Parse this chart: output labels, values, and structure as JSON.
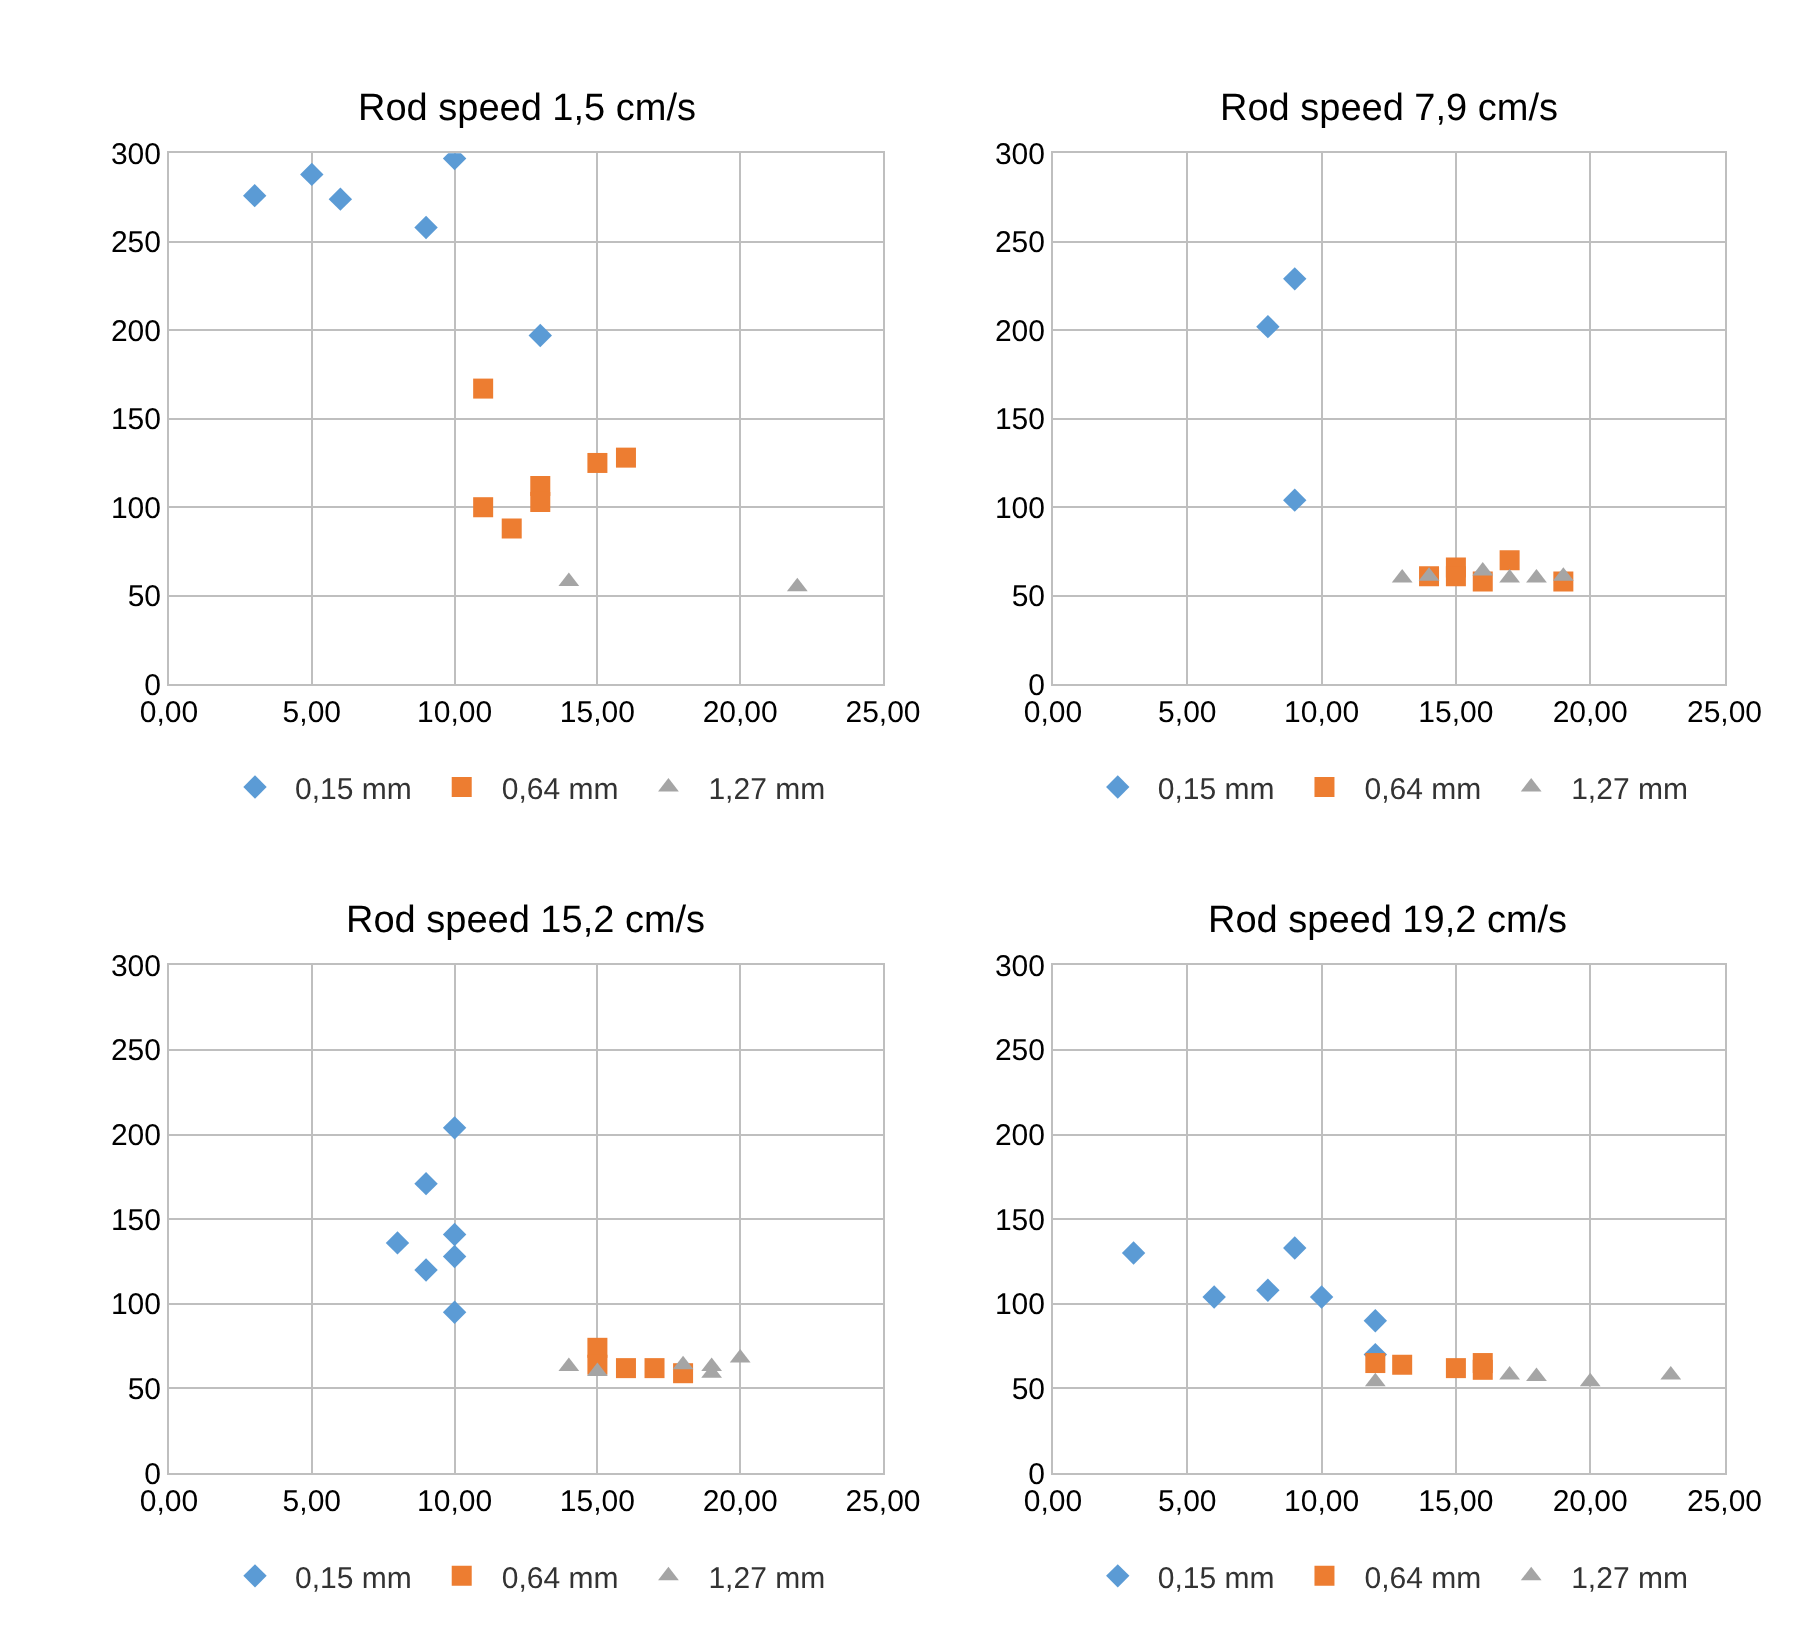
{
  "chart_data": [
    {
      "type": "scatter",
      "title": "Rod speed 1,5 cm/s",
      "xlim": [
        0,
        25
      ],
      "ylim": [
        0,
        300
      ],
      "xticks": [
        {
          "value": 0,
          "label": "0,00"
        },
        {
          "value": 5,
          "label": "5,00"
        },
        {
          "value": 10,
          "label": "10,00"
        },
        {
          "value": 15,
          "label": "15,00"
        },
        {
          "value": 20,
          "label": "20,00"
        },
        {
          "value": 25,
          "label": "25,00"
        }
      ],
      "yticks": [
        0,
        50,
        100,
        150,
        200,
        250,
        300
      ],
      "grid": true,
      "legend": "bottom",
      "series": [
        {
          "name": "0,15 mm",
          "color": "#5b9bd5",
          "marker": "diamond",
          "x": [
            3,
            5,
            6,
            9,
            10,
            13
          ],
          "values": [
            276,
            288,
            274,
            258,
            297,
            197
          ]
        },
        {
          "name": "0,64 mm",
          "color": "#ed7d31",
          "marker": "square",
          "x": [
            11,
            11,
            12,
            13,
            13,
            15,
            16
          ],
          "values": [
            167,
            100,
            88,
            112,
            103,
            125,
            128
          ]
        },
        {
          "name": "1,27 mm",
          "color": "#a5a5a5",
          "marker": "triangle",
          "x": [
            14,
            22
          ],
          "values": [
            58,
            55
          ]
        }
      ]
    },
    {
      "type": "scatter",
      "title": "Rod speed 7,9 cm/s",
      "xlim": [
        0,
        25
      ],
      "ylim": [
        0,
        300
      ],
      "xticks": [
        {
          "value": 0,
          "label": "0,00"
        },
        {
          "value": 5,
          "label": "5,00"
        },
        {
          "value": 10,
          "label": "10,00"
        },
        {
          "value": 15,
          "label": "15,00"
        },
        {
          "value": 20,
          "label": "20,00"
        },
        {
          "value": 25,
          "label": "25,00"
        }
      ],
      "yticks": [
        0,
        50,
        100,
        150,
        200,
        250,
        300
      ],
      "grid": true,
      "legend": "bottom",
      "series": [
        {
          "name": "0,15 mm",
          "color": "#5b9bd5",
          "marker": "diamond",
          "x": [
            8,
            9,
            9
          ],
          "values": [
            202,
            229,
            104
          ]
        },
        {
          "name": "0,64 mm",
          "color": "#ed7d31",
          "marker": "square",
          "x": [
            14,
            15,
            15,
            16,
            17,
            19
          ],
          "values": [
            61,
            66,
            61,
            58,
            70,
            58
          ]
        },
        {
          "name": "1,27 mm",
          "color": "#a5a5a5",
          "marker": "triangle",
          "x": [
            13,
            14,
            16,
            17,
            18,
            19
          ],
          "values": [
            60,
            61,
            64,
            60,
            60,
            61
          ]
        }
      ]
    },
    {
      "type": "scatter",
      "title": "Rod speed 15,2 cm/s",
      "xlim": [
        0,
        25
      ],
      "ylim": [
        0,
        300
      ],
      "xticks": [
        {
          "value": 0,
          "label": "0,00"
        },
        {
          "value": 5,
          "label": "5,00"
        },
        {
          "value": 10,
          "label": "10,00"
        },
        {
          "value": 15,
          "label": "15,00"
        },
        {
          "value": 20,
          "label": "20,00"
        },
        {
          "value": 25,
          "label": "25,00"
        }
      ],
      "yticks": [
        0,
        50,
        100,
        150,
        200,
        250,
        300
      ],
      "grid": true,
      "legend": "bottom",
      "series": [
        {
          "name": "0,15 mm",
          "color": "#5b9bd5",
          "marker": "diamond",
          "x": [
            10,
            9,
            8,
            10,
            10,
            9,
            10
          ],
          "values": [
            204,
            171,
            136,
            141,
            128,
            120,
            95
          ]
        },
        {
          "name": "0,64 mm",
          "color": "#ed7d31",
          "marker": "square",
          "x": [
            15,
            15,
            16,
            17,
            18
          ],
          "values": [
            74,
            64,
            62,
            62,
            59
          ]
        },
        {
          "name": "1,27 mm",
          "color": "#a5a5a5",
          "marker": "triangle",
          "x": [
            14,
            15,
            18,
            19,
            19,
            20
          ],
          "values": [
            63,
            60,
            64,
            63,
            59,
            68
          ]
        }
      ]
    },
    {
      "type": "scatter",
      "title": "Rod speed 19,2 cm/s",
      "xlim": [
        0,
        25
      ],
      "ylim": [
        0,
        300
      ],
      "xticks": [
        {
          "value": 0,
          "label": "0,00"
        },
        {
          "value": 5,
          "label": "5,00"
        },
        {
          "value": 10,
          "label": "10,00"
        },
        {
          "value": 15,
          "label": "15,00"
        },
        {
          "value": 20,
          "label": "20,00"
        },
        {
          "value": 25,
          "label": "25,00"
        }
      ],
      "yticks": [
        0,
        50,
        100,
        150,
        200,
        250,
        300
      ],
      "grid": true,
      "legend": "bottom",
      "series": [
        {
          "name": "0,15 mm",
          "color": "#5b9bd5",
          "marker": "diamond",
          "x": [
            3,
            6,
            8,
            9,
            10,
            12,
            12
          ],
          "values": [
            130,
            104,
            108,
            133,
            104,
            90,
            70
          ]
        },
        {
          "name": "0,64 mm",
          "color": "#ed7d31",
          "marker": "square",
          "x": [
            12,
            13,
            15,
            16,
            16
          ],
          "values": [
            65,
            64,
            62,
            65,
            61
          ]
        },
        {
          "name": "1,27 mm",
          "color": "#a5a5a5",
          "marker": "triangle",
          "x": [
            12,
            17,
            18,
            20,
            23
          ],
          "values": [
            54,
            58,
            57,
            54,
            58
          ]
        }
      ]
    }
  ]
}
